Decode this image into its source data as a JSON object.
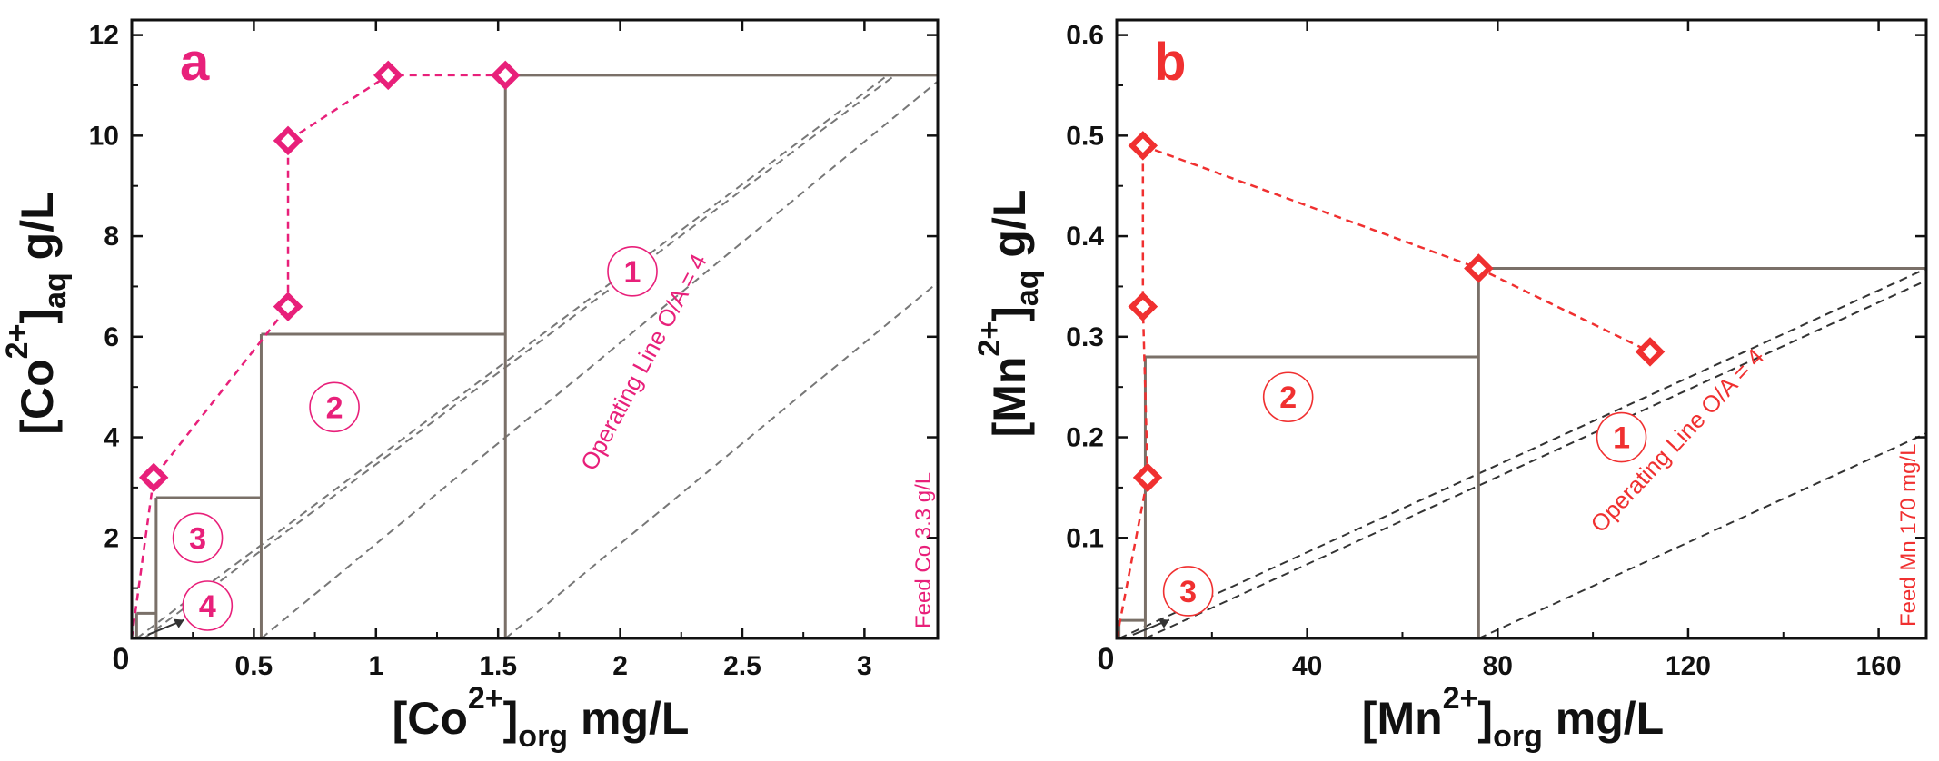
{
  "chart_data": [
    {
      "type": "line",
      "panel_label": "a",
      "xlabel_main": "[Co",
      "xlabel_sup": "2+",
      "xlabel_sub": "org",
      "xlabel_unit": "mg/L",
      "ylabel_main": "[Co",
      "ylabel_sup": "2+",
      "ylabel_sub": "aq",
      "ylabel_unit": "g/L",
      "xlim": [
        0,
        3.3
      ],
      "ylim": [
        0,
        12.3
      ],
      "x_ticks": [
        0,
        0.5,
        1,
        1.5,
        2,
        2.5,
        3
      ],
      "x_tick_labels": [
        "0",
        "0.5",
        "1",
        "1.5",
        "2",
        "2.5",
        "3"
      ],
      "y_ticks": [
        2,
        4,
        6,
        8,
        10,
        12
      ],
      "y_tick_labels": [
        "2",
        "4",
        "6",
        "8",
        "10",
        "12"
      ],
      "accent_color": "#e8207a",
      "step_color": "#7a7068",
      "equilibrium_curve": {
        "name": "Equilibrium isotherm",
        "x": [
          0,
          0.09,
          0.64,
          0.64,
          1.05,
          1.53
        ],
        "y": [
          0,
          3.2,
          6.6,
          9.9,
          11.2,
          11.2
        ]
      },
      "operating_lines": {
        "label": "Operating Line O/A = 4",
        "slope": 4,
        "x_intercepts": [
          0.02,
          0.05,
          0.53,
          1.53
        ]
      },
      "stages": [
        {
          "label": "1",
          "x_from": 1.53,
          "x_to": 3.3,
          "y": 11.2
        },
        {
          "label": "2",
          "x_from": 0.53,
          "x_to": 1.53,
          "y": 6.05
        },
        {
          "label": "3",
          "x_from": 0.1,
          "x_to": 0.53,
          "y": 2.8
        },
        {
          "label": "4",
          "x_from": 0.02,
          "x_to": 0.1,
          "y": 0.5
        }
      ],
      "stage_labels": [
        {
          "text": "1",
          "x": 2.05,
          "y": 7.3
        },
        {
          "text": "2",
          "x": 0.83,
          "y": 4.6
        },
        {
          "text": "3",
          "x": 0.27,
          "y": 2.0
        },
        {
          "text": "4",
          "x": 0.31,
          "y": 0.65
        }
      ],
      "feed_label": "Feed Co 3.3 g/L"
    },
    {
      "type": "line",
      "panel_label": "b",
      "xlabel_main": "[Mn",
      "xlabel_sup": "2+",
      "xlabel_sub": "org",
      "xlabel_unit": "mg/L",
      "ylabel_main": "[Mn",
      "ylabel_sup": "2+",
      "ylabel_sub": "aq",
      "ylabel_unit": "g/L",
      "xlim": [
        0,
        170
      ],
      "ylim": [
        0,
        0.615
      ],
      "x_ticks": [
        0,
        40,
        80,
        120,
        160
      ],
      "x_tick_labels": [
        "0",
        "40",
        "80",
        "120",
        "160"
      ],
      "y_ticks": [
        0.1,
        0.2,
        0.3,
        0.4,
        0.5,
        0.6
      ],
      "y_tick_labels": [
        "0.1",
        "0.2",
        "0.3",
        "0.4",
        "0.5",
        "0.6"
      ],
      "accent_color": "#f03030",
      "step_color": "#7a7068",
      "equilibrium_curve": {
        "name": "Equilibrium isotherm",
        "x": [
          0,
          6.5,
          5.5,
          5.5,
          5.5,
          76,
          112
        ],
        "y": [
          0,
          0.16,
          0.33,
          0.33,
          0.49,
          0.368,
          0.285
        ]
      },
      "operating_lines": {
        "label": "Operating Line O/A = 4",
        "slope": 0.00217,
        "x_intercepts": [
          0.5,
          6,
          76
        ]
      },
      "stages": [
        {
          "label": "1",
          "x_from": 76,
          "x_to": 170,
          "y": 0.368
        },
        {
          "label": "2",
          "x_from": 6,
          "x_to": 76,
          "y": 0.28
        },
        {
          "label": "3",
          "x_from": 0.5,
          "x_to": 6,
          "y": 0.018
        }
      ],
      "stage_labels": [
        {
          "text": "1",
          "x": 106,
          "y": 0.2
        },
        {
          "text": "2",
          "x": 36,
          "y": 0.24
        },
        {
          "text": "3",
          "x": 15,
          "y": 0.047
        }
      ],
      "feed_label": "Feed Mn 170 mg/L"
    }
  ]
}
